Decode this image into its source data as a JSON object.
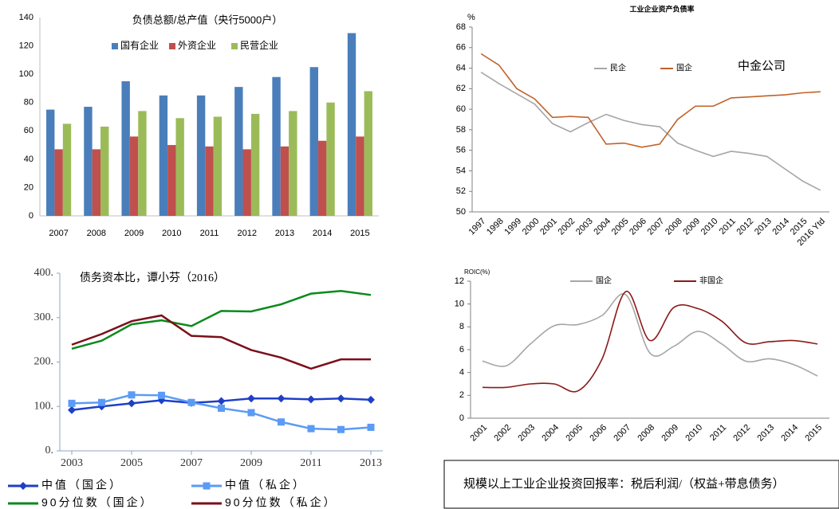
{
  "chart_data": [
    {
      "type": "bar",
      "title": "负债总额/总产值（央行5000户）",
      "categories": [
        "2007",
        "2008",
        "2009",
        "2010",
        "2011",
        "2012",
        "2013",
        "2014",
        "2015"
      ],
      "series": [
        {
          "name": "国有企业",
          "color": "#4a7ebb",
          "values": [
            75,
            77,
            95,
            85,
            85,
            91,
            98,
            105,
            129
          ]
        },
        {
          "name": "外资企业",
          "color": "#c0504d",
          "values": [
            47,
            47,
            56,
            50,
            49,
            47,
            49,
            53,
            56
          ]
        },
        {
          "name": "民营企业",
          "color": "#9bbb59",
          "values": [
            65,
            63,
            74,
            69,
            70,
            72,
            74,
            80,
            88
          ]
        }
      ],
      "ylim": [
        0,
        140
      ],
      "yticks": [
        0,
        20,
        40,
        60,
        80,
        100,
        120,
        140
      ],
      "grid": false
    },
    {
      "type": "line",
      "title": "工业企业资产负债率",
      "y_label": "%",
      "annotation": "中金公司",
      "categories": [
        "1997",
        "1998",
        "1999",
        "2000",
        "2001",
        "2002",
        "2003",
        "2004",
        "2005",
        "2006",
        "2007",
        "2008",
        "2009",
        "2010",
        "2011",
        "2012",
        "2013",
        "2014",
        "2015",
        "2016 Ytd"
      ],
      "series": [
        {
          "name": "民企",
          "color": "#a6a6a6",
          "values": [
            63.6,
            62.5,
            61.5,
            60.5,
            58.6,
            57.8,
            58.7,
            59.5,
            58.9,
            58.5,
            58.3,
            56.7,
            56.0,
            55.4,
            55.9,
            55.7,
            55.4,
            54.2,
            53.0,
            52.1
          ]
        },
        {
          "name": "国企",
          "color": "#c0622a",
          "values": [
            65.4,
            64.3,
            62.0,
            61.0,
            59.2,
            59.3,
            59.2,
            56.6,
            56.7,
            56.3,
            56.6,
            59.0,
            60.3,
            60.3,
            61.1,
            61.2,
            61.3,
            61.4,
            61.6,
            61.7
          ]
        }
      ],
      "ylim": [
        50,
        68
      ],
      "yticks": [
        50,
        52,
        54,
        56,
        58,
        60,
        62,
        64,
        66,
        68
      ],
      "grid": false
    },
    {
      "type": "line",
      "title": "债务资本比，谭小芬（2016）",
      "x": [
        2003,
        2004,
        2005,
        2006,
        2007,
        2008,
        2009,
        2010,
        2011,
        2012,
        2013
      ],
      "series": [
        {
          "name": "中值（国企）",
          "color": "#1f3fc6",
          "marker": "diamond",
          "values": [
            92,
            100,
            107,
            114,
            108,
            112,
            118,
            118,
            116,
            118,
            115
          ]
        },
        {
          "name": "中值（私企）",
          "color": "#5b9bf5",
          "marker": "square",
          "values": [
            107,
            109,
            126,
            125,
            109,
            96,
            86,
            65,
            50,
            48,
            53
          ]
        },
        {
          "name": "90分位数（国企）",
          "color": "#0a8a1c",
          "values": [
            230,
            248,
            285,
            294,
            281,
            315,
            314,
            330,
            354,
            360,
            351
          ]
        },
        {
          "name": "90分位数（私企）",
          "color": "#7a0f1a",
          "values": [
            239,
            263,
            292,
            305,
            259,
            256,
            227,
            210,
            185,
            206,
            206
          ]
        }
      ],
      "xlim": [
        2002.6,
        2013.4
      ],
      "xticks": [
        2003,
        2005,
        2007,
        2009,
        2011,
        2013
      ],
      "ylim": [
        0,
        400
      ],
      "yticks": [
        {
          "value": 0,
          "label": "0."
        },
        {
          "value": 100,
          "label": "100."
        },
        {
          "value": 200,
          "label": "200."
        },
        {
          "value": 300,
          "label": "300."
        },
        {
          "value": 400,
          "label": "400."
        }
      ],
      "grid": false
    },
    {
      "type": "line",
      "y_label": "ROIC(%)",
      "smooth": true,
      "note": "规模以上工业企业投资回报率：税后利润/（权益+带息债务）",
      "categories": [
        "2001",
        "2002",
        "2003",
        "2004",
        "2005",
        "2006",
        "2007",
        "2008",
        "2009",
        "2010",
        "2011",
        "2012",
        "2013",
        "2014",
        "2015"
      ],
      "series": [
        {
          "name": "国企",
          "color": "#a6a6a6",
          "values": [
            5.0,
            4.6,
            6.5,
            8.1,
            8.2,
            9.0,
            10.8,
            5.7,
            6.3,
            7.6,
            6.5,
            5.0,
            5.2,
            4.7,
            3.7
          ]
        },
        {
          "name": "非国企",
          "color": "#8b1a1a",
          "values": [
            2.7,
            2.7,
            3.0,
            3.0,
            2.4,
            5.2,
            11.1,
            6.8,
            9.7,
            9.6,
            8.5,
            6.6,
            6.7,
            6.8,
            6.5
          ]
        }
      ],
      "ylim": [
        0,
        12
      ],
      "yticks": [
        0,
        2,
        4,
        6,
        8,
        10,
        12
      ],
      "grid": false
    }
  ]
}
